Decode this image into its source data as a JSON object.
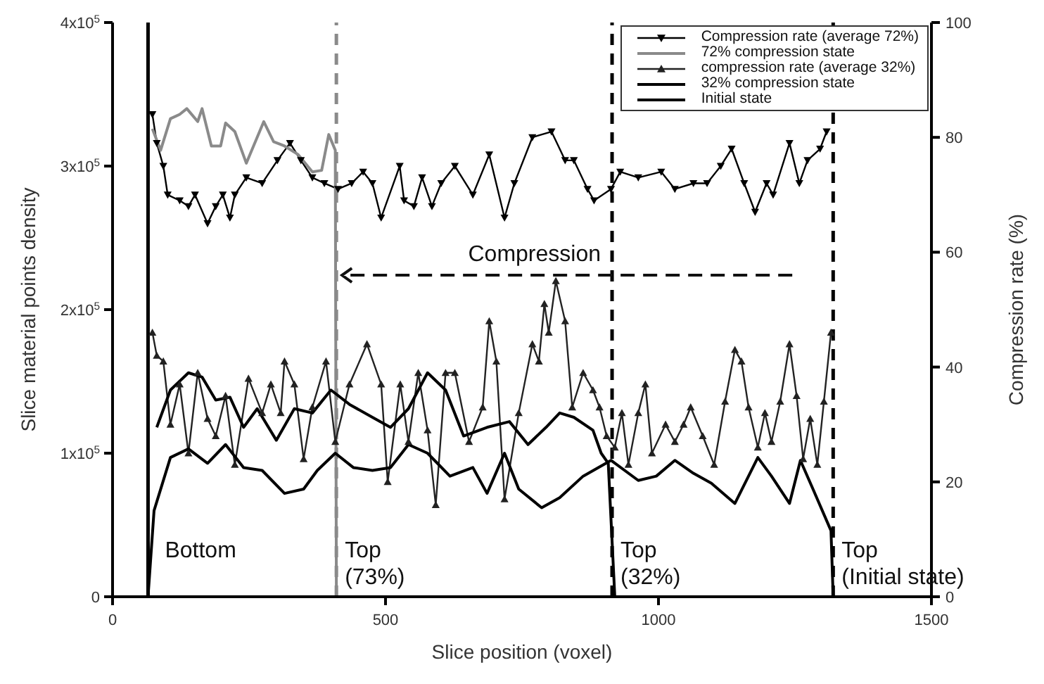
{
  "chart_data": {
    "type": "line",
    "xlabel": "Slice position (voxel)",
    "ylabel": "Slice material points density",
    "y2label": "Compression rate (%)",
    "xlim": [
      0,
      1500
    ],
    "xticks": [
      0,
      500,
      1000,
      1500
    ],
    "ylim": [
      0,
      400000
    ],
    "yticks": [
      0,
      {
        "value": 100000,
        "label": "1x10$^{5}$"
      },
      {
        "value": 200000,
        "label": "2x10$^{5}$"
      },
      {
        "value": 300000,
        "label": "3x10$^{5}$"
      },
      {
        "value": 400000,
        "label": "4x10$^{5}$"
      }
    ],
    "y2lim": [
      0,
      100
    ],
    "y2ticks": [
      0,
      20,
      40,
      60,
      80,
      100
    ],
    "legend": "top right",
    "line_style": "solid",
    "series": [
      {
        "name": "Compression rate (average 72%)",
        "color": "#000000",
        "axis": "y2",
        "marker": "triangle-down",
        "x": [
          73,
          81,
          93,
          101,
          123,
          139,
          151,
          174,
          189,
          202,
          215,
          224,
          245,
          274,
          302,
          325,
          345,
          366,
          388,
          413,
          438,
          459,
          476,
          492,
          526,
          534,
          552,
          567,
          585,
          602,
          627,
          660,
          690,
          718,
          736,
          769,
          804,
          829,
          845,
          870,
          882,
          913,
          930,
          963,
          1005,
          1030,
          1064,
          1089,
          1114,
          1134,
          1157,
          1177,
          1198,
          1210,
          1240,
          1258,
          1273,
          1296,
          1308
        ],
        "values": [
          84,
          79,
          75,
          70,
          69,
          68,
          70,
          65,
          68,
          70,
          66,
          70,
          73,
          72,
          76,
          79,
          76,
          73,
          72,
          71,
          72,
          74,
          72,
          66,
          75,
          69,
          68,
          73,
          68,
          72,
          75,
          70,
          77,
          66,
          72,
          80,
          81,
          76,
          76,
          71,
          69,
          71,
          74,
          73,
          74,
          71,
          72,
          72,
          75,
          78,
          72,
          67,
          72,
          70,
          79,
          72,
          76,
          78,
          81
        ]
      },
      {
        "name": "72% compression state",
        "color": "#8a8a8a",
        "marker": "none",
        "x": [
          73,
          88,
          106,
          123,
          136,
          156,
          164,
          181,
          198,
          207,
          224,
          245,
          277,
          295,
          315,
          340,
          366,
          383,
          396,
          408,
          410
        ],
        "values": [
          326000,
          311000,
          333000,
          336000,
          340000,
          331000,
          340000,
          314000,
          314000,
          330000,
          324000,
          302000,
          331000,
          317000,
          314000,
          308000,
          296000,
          297000,
          322000,
          311000,
          0
        ]
      },
      {
        "name": "compression rate (average 32%)",
        "color": "#222222",
        "axis": "y2",
        "marker": "triangle",
        "x": [
          73,
          81,
          93,
          106,
          123,
          139,
          156,
          174,
          189,
          207,
          224,
          249,
          274,
          290,
          308,
          315,
          333,
          350,
          366,
          391,
          408,
          434,
          466,
          492,
          504,
          527,
          542,
          560,
          577,
          592,
          610,
          627,
          653,
          678,
          690,
          703,
          718,
          744,
          769,
          781,
          791,
          799,
          812,
          829,
          842,
          862,
          880,
          892,
          905,
          920,
          933,
          945,
          963,
          976,
          988,
          1013,
          1030,
          1046,
          1059,
          1081,
          1102,
          1122,
          1140,
          1152,
          1165,
          1182,
          1195,
          1207,
          1223,
          1240,
          1253,
          1265,
          1278,
          1291,
          1303,
          1316
        ],
        "values": [
          46,
          42,
          41,
          30,
          37,
          25,
          39,
          31,
          28,
          35,
          23,
          38,
          32,
          37,
          32,
          41,
          37,
          24,
          33,
          41,
          27,
          37,
          44,
          37,
          20,
          37,
          27,
          39,
          29,
          16,
          39,
          39,
          27,
          33,
          48,
          41,
          17,
          32,
          44,
          41,
          51,
          46,
          55,
          48,
          33,
          39,
          36,
          33,
          28,
          26,
          32,
          23,
          32,
          37,
          25,
          30,
          27,
          30,
          33,
          28,
          23,
          34,
          43,
          41,
          33,
          26,
          32,
          27,
          34,
          44,
          35,
          24,
          31,
          23,
          34,
          46
        ]
      },
      {
        "name": "32% compression state",
        "color": "#000000",
        "marker": "none",
        "x": [
          81,
          106,
          139,
          164,
          189,
          215,
          240,
          265,
          300,
          333,
          366,
          400,
          434,
          476,
          509,
          542,
          577,
          610,
          643,
          686,
          727,
          761,
          794,
          819,
          845,
          880,
          895,
          908,
          920
        ],
        "values": [
          118000,
          144000,
          156000,
          153000,
          137000,
          139000,
          118000,
          131000,
          109000,
          131000,
          128000,
          144000,
          134000,
          125000,
          118000,
          131000,
          156000,
          144000,
          112000,
          118000,
          122000,
          106000,
          118000,
          128000,
          125000,
          116000,
          100000,
          93000,
          0
        ]
      },
      {
        "name": "Initial state",
        "color": "#000000",
        "marker": "none",
        "x": [
          65,
          76,
          106,
          139,
          174,
          207,
          240,
          274,
          315,
          350,
          375,
          408,
          441,
          476,
          509,
          542,
          577,
          618,
          660,
          686,
          718,
          744,
          786,
          819,
          862,
          913,
          963,
          996,
          1030,
          1064,
          1097,
          1140,
          1182,
          1207,
          1240,
          1260,
          1283,
          1316,
          1320
        ],
        "values": [
          0,
          60000,
          97000,
          103000,
          93000,
          106000,
          90000,
          88000,
          72000,
          75000,
          88000,
          100000,
          90000,
          88000,
          90000,
          106000,
          100000,
          84000,
          90000,
          72000,
          100000,
          75000,
          62000,
          69000,
          84000,
          95000,
          81000,
          84000,
          95000,
          86000,
          79000,
          65000,
          97000,
          84000,
          65000,
          95000,
          75000,
          46000,
          0
        ]
      }
    ],
    "ref_lines": [
      {
        "axis": "x",
        "value": 65,
        "color": "#000000",
        "line_style": "solid"
      },
      {
        "axis": "x",
        "value": 410,
        "color": "#8a8a8a",
        "line_style": "dashed"
      },
      {
        "axis": "x",
        "value": 915,
        "color": "#000000",
        "line_style": "dashed"
      },
      {
        "axis": "x",
        "value": 1320,
        "color": "#000000",
        "line_style": "dashed"
      }
    ],
    "annotations": [
      "Compression",
      "Bottom",
      "Top (73%)",
      "Top (32%)",
      "Top (Initial state)"
    ]
  }
}
